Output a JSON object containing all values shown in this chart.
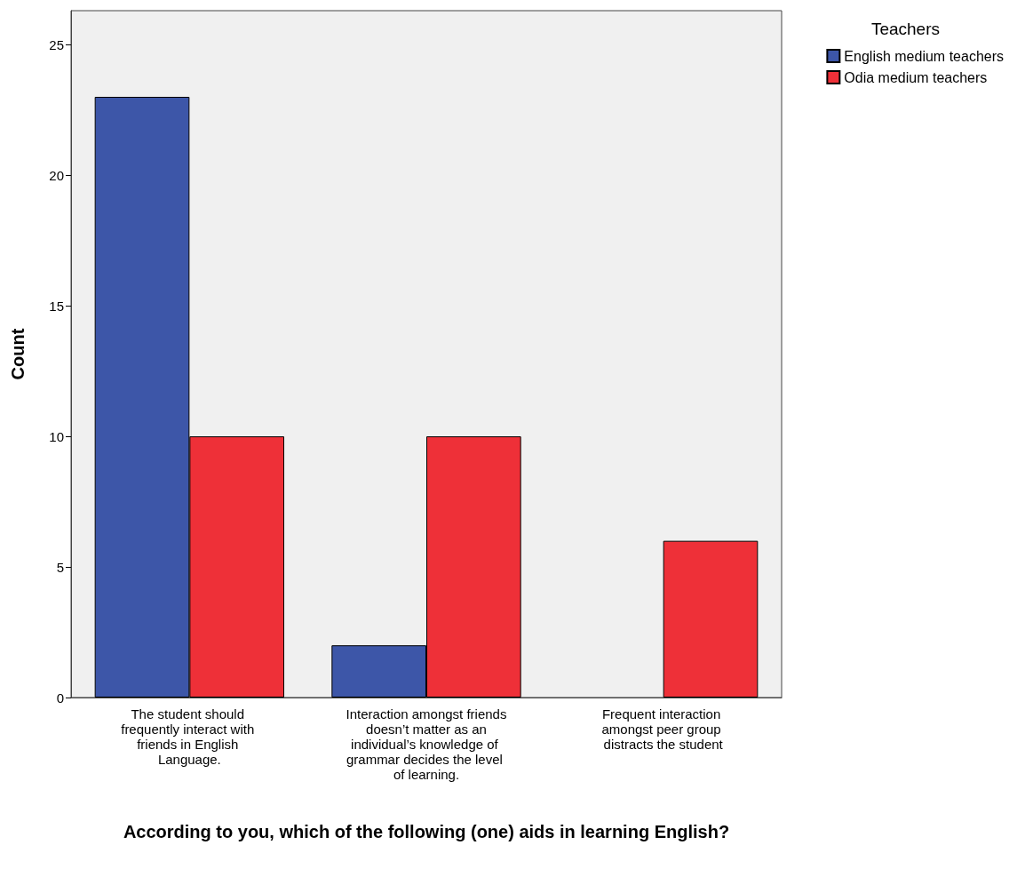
{
  "chart_data": {
    "type": "bar",
    "xlabel": "According to you, which of the following (one) aids in learning English?",
    "ylabel": "Count",
    "legend_title": "Teachers",
    "categories": [
      "The student should frequently interact with friends in English Language.",
      "Interaction amongst friends doesn’t matter as an individual’s knowledge of grammar decides the level of learning.",
      "Frequent interaction amongst peer group distracts the student"
    ],
    "series": [
      {
        "name": "English medium teachers",
        "color": "#3d56a8",
        "values": [
          23,
          2,
          0
        ]
      },
      {
        "name": "Odia medium teachers",
        "color": "#ee3038",
        "values": [
          10,
          10,
          6
        ]
      }
    ],
    "ylim": [
      0,
      26.3
    ],
    "yticks": [
      0,
      5,
      10,
      15,
      20,
      25
    ],
    "grid": false,
    "legend": "top right"
  }
}
